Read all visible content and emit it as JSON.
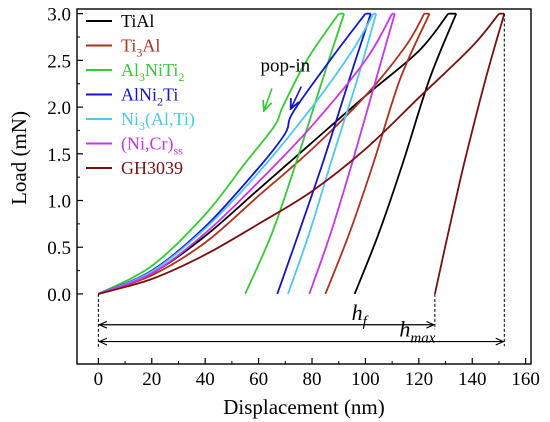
{
  "chart_data": {
    "type": "line",
    "xlabel": "Displacement (nm)",
    "ylabel": "Load (mN)",
    "xlim": [
      -8,
      162
    ],
    "ylim": [
      -0.75,
      3.05
    ],
    "xticks": [
      0,
      20,
      40,
      60,
      80,
      100,
      120,
      140,
      160
    ],
    "yticks": [
      0.0,
      0.5,
      1.0,
      1.5,
      2.0,
      2.5,
      3.0
    ],
    "xtick_labels": [
      "0",
      "20",
      "40",
      "60",
      "80",
      "100",
      "120",
      "140",
      "160"
    ],
    "ytick_labels": [
      "0.0",
      "0.5",
      "1.0",
      "1.5",
      "2.0",
      "2.5",
      "3.0"
    ],
    "legend_position": "top-left",
    "series": [
      {
        "name": "TiAl",
        "legend": {
          "base": "TiAl"
        },
        "color": "#000000",
        "loading": [
          [
            0,
            0
          ],
          [
            20,
            0.22
          ],
          [
            40,
            0.62
          ],
          [
            60,
            1.12
          ],
          [
            80,
            1.62
          ],
          [
            100,
            2.12
          ],
          [
            120,
            2.6
          ],
          [
            131,
            3.0
          ]
        ],
        "unloading": [
          [
            134,
            3.0
          ],
          [
            124,
            2.3
          ],
          [
            114,
            1.4
          ],
          [
            105,
            0.65
          ],
          [
            96,
            0.0
          ]
        ]
      },
      {
        "name": "Ti3Al",
        "legend": {
          "base": "Ti",
          "sub1": "3",
          "mid": "Al"
        },
        "color": "#b0301c",
        "loading": [
          [
            0,
            0
          ],
          [
            20,
            0.2
          ],
          [
            40,
            0.55
          ],
          [
            60,
            1.05
          ],
          [
            80,
            1.55
          ],
          [
            100,
            2.12
          ],
          [
            115,
            2.65
          ],
          [
            122,
            3.0
          ]
        ],
        "unloading": [
          [
            124,
            3.0
          ],
          [
            113,
            2.3
          ],
          [
            103,
            1.4
          ],
          [
            94,
            0.65
          ],
          [
            85,
            0.0
          ]
        ]
      },
      {
        "name": "Al3NiTi2",
        "legend": {
          "base": "Al",
          "sub1": "3",
          "mid": "NiTi",
          "sub2": "2"
        },
        "color": "#33cc33",
        "loading": [
          [
            0,
            0
          ],
          [
            20,
            0.3
          ],
          [
            40,
            0.85
          ],
          [
            55,
            1.4
          ],
          [
            66,
            1.8
          ],
          [
            69,
            2.0
          ],
          [
            78,
            2.5
          ],
          [
            90,
            3.0
          ]
        ],
        "unloading": [
          [
            92,
            3.0
          ],
          [
            84,
            2.3
          ],
          [
            74,
            1.4
          ],
          [
            65,
            0.65
          ],
          [
            55,
            0.0
          ]
        ]
      },
      {
        "name": "AlNi2Ti",
        "legend": {
          "base": "AlNi",
          "sub1": "2",
          "mid": "Ti"
        },
        "color": "#1414cc",
        "loading": [
          [
            0,
            0
          ],
          [
            20,
            0.25
          ],
          [
            40,
            0.72
          ],
          [
            60,
            1.35
          ],
          [
            70,
            1.72
          ],
          [
            73,
            1.95
          ],
          [
            88,
            2.55
          ],
          [
            100,
            3.0
          ]
        ],
        "unloading": [
          [
            102,
            3.0
          ],
          [
            94,
            2.3
          ],
          [
            84,
            1.4
          ],
          [
            75,
            0.65
          ],
          [
            67,
            0.0
          ]
        ]
      },
      {
        "name": "Ni3(Al,Ti)",
        "legend": {
          "base": "Ni",
          "sub1": "3",
          "mid": "(Al,Ti)"
        },
        "color": "#4dc8f0",
        "loading": [
          [
            0,
            0
          ],
          [
            20,
            0.24
          ],
          [
            40,
            0.7
          ],
          [
            60,
            1.3
          ],
          [
            80,
            2.0
          ],
          [
            95,
            2.6
          ],
          [
            103,
            3.0
          ]
        ],
        "unloading": [
          [
            104,
            3.0
          ],
          [
            97,
            2.3
          ],
          [
            87,
            1.4
          ],
          [
            79,
            0.65
          ],
          [
            71,
            0.0
          ]
        ]
      },
      {
        "name": "(Ni,Cr)ss",
        "legend": {
          "base": "(Ni,Cr)",
          "sub1": "ss"
        },
        "color": "#cc33ee",
        "loading": [
          [
            0,
            0
          ],
          [
            20,
            0.22
          ],
          [
            40,
            0.65
          ],
          [
            60,
            1.2
          ],
          [
            80,
            1.8
          ],
          [
            100,
            2.5
          ],
          [
            110,
            3.0
          ]
        ],
        "unloading": [
          [
            111,
            3.0
          ],
          [
            104,
            2.3
          ],
          [
            95,
            1.4
          ],
          [
            87,
            0.65
          ],
          [
            79,
            0.0
          ]
        ]
      },
      {
        "name": "GH3039",
        "legend": {
          "base": "GH3039"
        },
        "color": "#7a1010",
        "loading": [
          [
            0,
            0
          ],
          [
            20,
            0.16
          ],
          [
            40,
            0.42
          ],
          [
            60,
            0.75
          ],
          [
            80,
            1.1
          ],
          [
            100,
            1.55
          ],
          [
            120,
            2.1
          ],
          [
            140,
            2.65
          ],
          [
            150,
            3.0
          ]
        ],
        "unloading": [
          [
            152,
            3.0
          ],
          [
            145,
            2.3
          ],
          [
            137,
            1.4
          ],
          [
            131,
            0.65
          ],
          [
            126,
            0.0
          ]
        ]
      }
    ],
    "annotations": {
      "popin": {
        "text": "pop-in",
        "x": 70,
        "y": 2.38
      },
      "popin_arrows": [
        [
          [
            65,
            2.2
          ],
          [
            62,
            1.96
          ]
        ],
        [
          [
            76,
            2.22
          ],
          [
            72,
            1.98
          ]
        ]
      ],
      "hf": {
        "base": "h",
        "sub": "f",
        "from": 0,
        "to": 126,
        "y": -0.33
      },
      "hmax": {
        "base": "h",
        "sub": "max",
        "from": 0,
        "to": 152,
        "y": -0.51
      }
    }
  }
}
